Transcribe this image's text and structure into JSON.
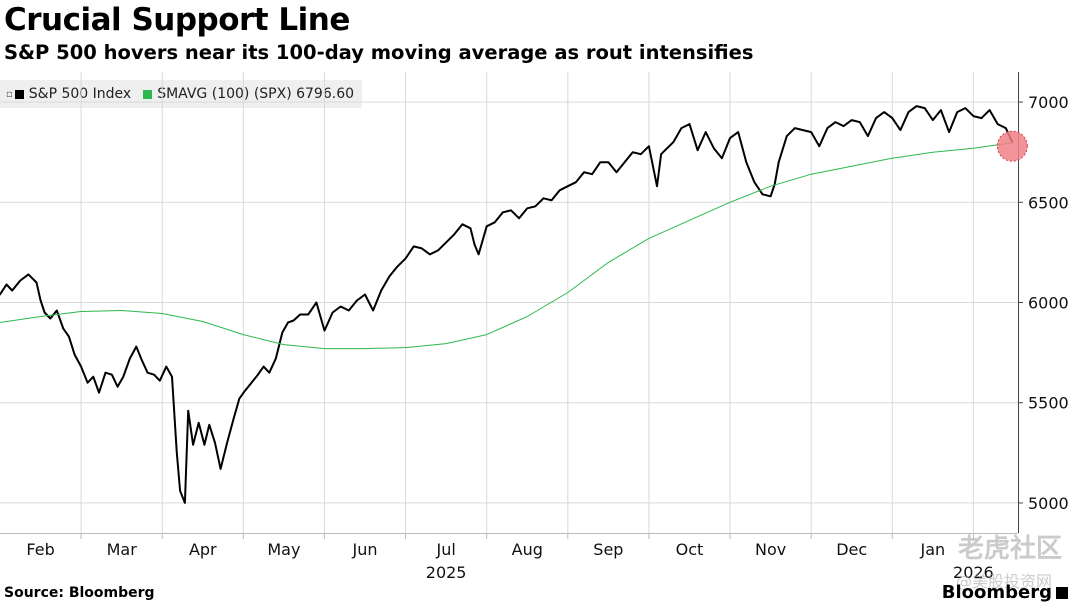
{
  "header": {
    "title": "Crucial Support Line",
    "subtitle": "S&P 500 hovers near its 100-day moving average as rout intensifies"
  },
  "legend": {
    "items": [
      {
        "label": "S&P 500 Index",
        "color": "#000000"
      },
      {
        "label": "SMAVG (100) (SPX) 6796.60",
        "color": "#2db84d"
      }
    ]
  },
  "footer": {
    "source": "Source: Bloomberg",
    "brand": "Bloomberg"
  },
  "watermark": {
    "text": "老虎社区",
    "subtext": "@美股投资网"
  },
  "chart_data": {
    "type": "line",
    "title": "Crucial Support Line",
    "subtitle": "S&P 500 hovers near its 100-day moving average as rout intensifies",
    "ylim": [
      4850,
      7150
    ],
    "yticks": [
      5000,
      5500,
      6000,
      6500,
      7000
    ],
    "xlim": [
      0,
      12.55
    ],
    "xticks": [
      {
        "label": "Feb",
        "x": 0.5
      },
      {
        "label": "Mar",
        "x": 1.5
      },
      {
        "label": "Apr",
        "x": 2.5
      },
      {
        "label": "May",
        "x": 3.5
      },
      {
        "label": "Jun",
        "x": 4.5
      },
      {
        "label": "Jul",
        "x": 5.5
      },
      {
        "label": "Aug",
        "x": 6.5
      },
      {
        "label": "Sep",
        "x": 7.5
      },
      {
        "label": "Oct",
        "x": 8.5
      },
      {
        "label": "Nov",
        "x": 9.5
      },
      {
        "label": "Dec",
        "x": 10.5
      },
      {
        "label": "Jan",
        "x": 11.5
      }
    ],
    "month_boundaries": [
      1,
      2,
      3,
      4,
      5,
      6,
      7,
      8,
      9,
      10,
      11,
      12
    ],
    "year_labels": [
      {
        "label": "2025",
        "x": 5.5
      },
      {
        "label": "2026",
        "x": 12.0
      }
    ],
    "series": [
      {
        "name": "S&P 500 Index",
        "color": "#000000",
        "x": [
          0,
          0.08,
          0.15,
          0.25,
          0.35,
          0.45,
          0.5,
          0.55,
          0.62,
          0.7,
          0.78,
          0.85,
          0.92,
          1.0,
          1.08,
          1.15,
          1.22,
          1.3,
          1.38,
          1.45,
          1.52,
          1.6,
          1.68,
          1.75,
          1.82,
          1.9,
          1.97,
          2.05,
          2.12,
          2.18,
          2.22,
          2.28,
          2.32,
          2.38,
          2.45,
          2.52,
          2.58,
          2.65,
          2.72,
          2.8,
          2.88,
          2.95,
          3.02,
          3.1,
          3.18,
          3.25,
          3.32,
          3.4,
          3.48,
          3.55,
          3.62,
          3.7,
          3.8,
          3.9,
          4.0,
          4.1,
          4.2,
          4.3,
          4.4,
          4.5,
          4.6,
          4.7,
          4.8,
          4.9,
          5.0,
          5.1,
          5.2,
          5.3,
          5.4,
          5.5,
          5.6,
          5.7,
          5.8,
          5.85,
          5.9,
          6.0,
          6.1,
          6.2,
          6.3,
          6.4,
          6.5,
          6.6,
          6.7,
          6.8,
          6.9,
          7.0,
          7.1,
          7.2,
          7.3,
          7.4,
          7.5,
          7.6,
          7.7,
          7.8,
          7.9,
          8.0,
          8.1,
          8.15,
          8.2,
          8.3,
          8.4,
          8.5,
          8.6,
          8.7,
          8.8,
          8.9,
          9.0,
          9.1,
          9.2,
          9.3,
          9.4,
          9.5,
          9.55,
          9.6,
          9.7,
          9.8,
          9.9,
          10.0,
          10.1,
          10.2,
          10.3,
          10.4,
          10.5,
          10.6,
          10.7,
          10.8,
          10.9,
          11.0,
          11.1,
          11.2,
          11.3,
          11.4,
          11.5,
          11.6,
          11.7,
          11.8,
          11.9,
          12.0,
          12.1,
          12.2,
          12.3,
          12.4,
          12.48
        ],
        "values": [
          6040,
          6090,
          6060,
          6110,
          6140,
          6100,
          6010,
          5950,
          5920,
          5960,
          5870,
          5830,
          5740,
          5680,
          5600,
          5630,
          5550,
          5650,
          5640,
          5580,
          5630,
          5720,
          5780,
          5710,
          5650,
          5640,
          5610,
          5680,
          5630,
          5250,
          5060,
          5000,
          5460,
          5290,
          5400,
          5290,
          5390,
          5300,
          5170,
          5300,
          5420,
          5520,
          5560,
          5600,
          5640,
          5680,
          5650,
          5720,
          5850,
          5900,
          5910,
          5940,
          5940,
          6000,
          5860,
          5950,
          5980,
          5960,
          6010,
          6040,
          5960,
          6060,
          6130,
          6180,
          6220,
          6280,
          6270,
          6240,
          6260,
          6300,
          6340,
          6390,
          6370,
          6290,
          6240,
          6380,
          6400,
          6450,
          6460,
          6420,
          6470,
          6480,
          6520,
          6510,
          6560,
          6580,
          6600,
          6650,
          6640,
          6700,
          6700,
          6650,
          6700,
          6750,
          6740,
          6780,
          6580,
          6740,
          6760,
          6800,
          6870,
          6890,
          6760,
          6850,
          6770,
          6720,
          6820,
          6850,
          6700,
          6600,
          6540,
          6530,
          6590,
          6700,
          6830,
          6870,
          6860,
          6850,
          6780,
          6870,
          6900,
          6880,
          6910,
          6900,
          6830,
          6920,
          6950,
          6920,
          6860,
          6950,
          6980,
          6970,
          6910,
          6960,
          6850,
          6950,
          6970,
          6930,
          6920,
          6960,
          6890,
          6870,
          6800
        ],
        "line_width": 2
      },
      {
        "name": "SMAVG (100) (SPX)",
        "color": "#2db84d",
        "x": [
          0,
          0.5,
          1.0,
          1.5,
          2.0,
          2.5,
          3.0,
          3.5,
          4.0,
          4.5,
          5.0,
          5.5,
          6.0,
          6.5,
          7.0,
          7.5,
          8.0,
          8.5,
          9.0,
          9.5,
          10.0,
          10.5,
          11.0,
          11.5,
          12.0,
          12.48
        ],
        "values": [
          5900,
          5930,
          5955,
          5960,
          5945,
          5905,
          5840,
          5790,
          5770,
          5770,
          5775,
          5795,
          5840,
          5930,
          6050,
          6200,
          6320,
          6410,
          6500,
          6580,
          6640,
          6680,
          6720,
          6750,
          6770,
          6796.6
        ],
        "line_width": 1
      }
    ],
    "marker": {
      "x": 12.48,
      "y": 6780,
      "color": "#f08088"
    }
  }
}
